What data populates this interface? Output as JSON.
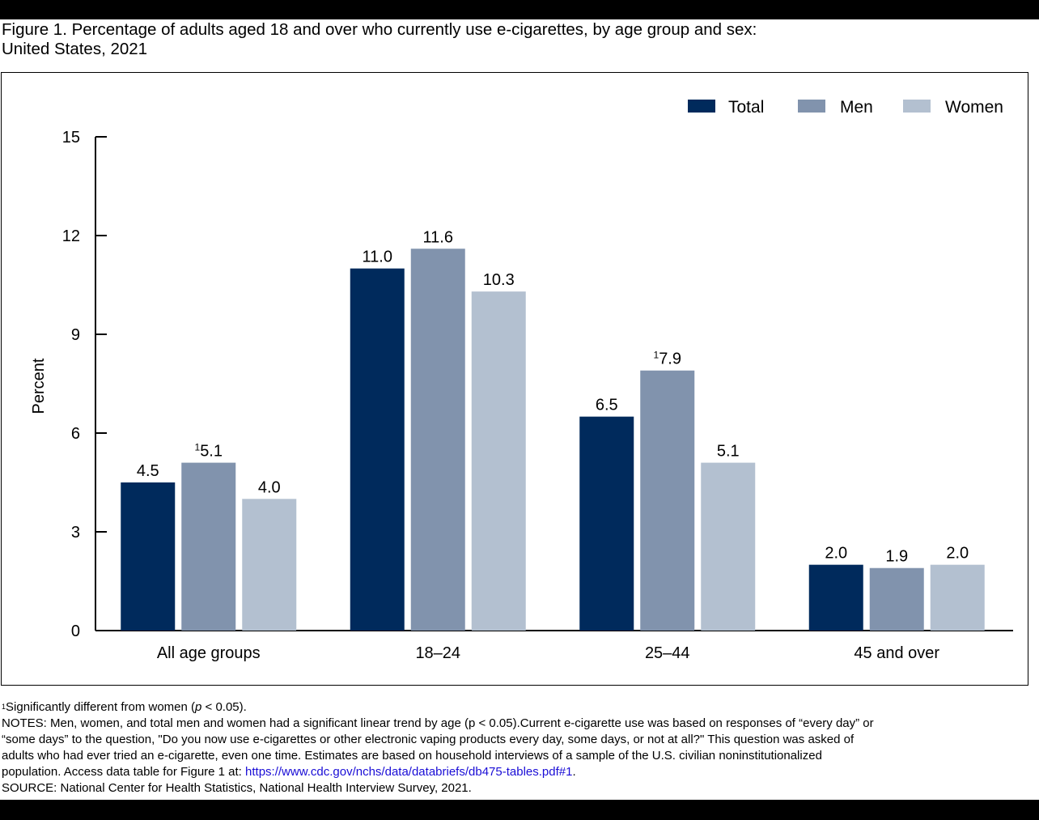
{
  "title_line1": "Figure 1. Percentage of adults aged 18 and over who currently use e-cigarettes, by age group and sex:",
  "title_line2": "United States, 2021",
  "chart_data": {
    "type": "bar",
    "categories": [
      "All age groups",
      "18–24",
      "25–44",
      "45 and over"
    ],
    "series": [
      {
        "name": "Total",
        "color": "#002a5c",
        "values": [
          4.5,
          11.0,
          6.5,
          2.0
        ],
        "labels": [
          "4.5",
          "11.0",
          "6.5",
          "2.0"
        ],
        "marked": [
          false,
          false,
          false,
          false
        ]
      },
      {
        "name": "Men",
        "color": "#8193ad",
        "values": [
          5.1,
          11.6,
          7.9,
          1.9
        ],
        "labels": [
          "5.1",
          "11.6",
          "7.9",
          "1.9"
        ],
        "marked": [
          true,
          false,
          true,
          false
        ]
      },
      {
        "name": "Women",
        "color": "#b3c0d0",
        "values": [
          4.0,
          10.3,
          5.1,
          2.0
        ],
        "labels": [
          "4.0",
          "10.3",
          "5.1",
          "2.0"
        ],
        "marked": [
          false,
          false,
          false,
          false
        ]
      }
    ],
    "ylabel": "Percent",
    "ylim": [
      0,
      15
    ],
    "yticks": [
      0,
      3,
      6,
      9,
      12,
      15
    ],
    "footnote_marker": "1",
    "legend_position": "top-right",
    "grid": false
  },
  "notes": {
    "footnote_marker": "1",
    "footnote_text_a": "Significantly different from women (",
    "footnote_p": "p",
    "footnote_text_b": " < 0.05).",
    "line1": "NOTES: Men, women, and total men and women had a significant linear trend by age (p < 0.05).Current e-cigarette use was based on responses of “every day” or",
    "line2": "“some days” to the question, \"Do you now use e-cigarettes or other electronic vaping products every day, some days, or not at all?\" This question was asked of",
    "line3": "adults who had ever tried an e-cigarette, even one time. Estimates are based on household interviews of a sample of the U.S. civilian noninstitutionalized",
    "line4_prefix": "population. Access data table for Figure 1 at: ",
    "line4_link": "https://www.cdc.gov/nchs/data/databriefs/db475-tables.pdf#1",
    "line4_suffix": ".",
    "source": "SOURCE: National Center for Health Statistics, National Health Interview Survey, 2021."
  }
}
